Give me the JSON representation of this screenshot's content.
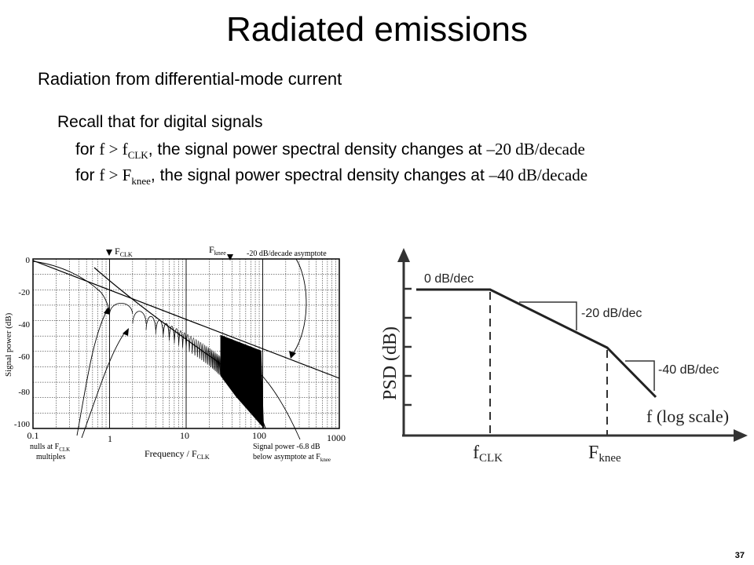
{
  "slide": {
    "title": "Radiated emissions",
    "subtitle": "Radiation from differential-mode current",
    "recall": "Recall that for digital signals",
    "bullet1": {
      "prefix": "for ",
      "f": "f > f",
      "sub": "CLK",
      "middle": ", the signal power spectral density changes at ",
      "rate": "–20 dB/decade"
    },
    "bullet2": {
      "prefix": "for ",
      "f": "f > F",
      "sub": "knee",
      "middle": ", the signal power spectral density changes at ",
      "rate": "–40 dB/decade"
    },
    "page_number": "37"
  },
  "left_plot": {
    "ylabel": "Signal power (dB)",
    "yticks": [
      "0",
      "-20",
      "-40",
      "-60",
      "-80",
      "-100"
    ],
    "xticks": [
      "0.1",
      "1",
      "10",
      "100",
      "1000"
    ],
    "xlabel_main": "Frequency / F",
    "xlabel_sub": "CLK",
    "fclk_marker": "F",
    "fclk_sub": "CLK",
    "fknee_marker": "F",
    "fknee_sub": "knee",
    "asymptote_note": "-20 dB/decade asymptote",
    "nulls_note_l1": "nulls at F",
    "nulls_note_sub": "CLK",
    "nulls_note_l2": "multiples",
    "power_note_l1": "Signal power -6.8 dB",
    "power_note_l2": "below asymptote at F",
    "power_note_sub": "knee"
  },
  "right_plot": {
    "ylabel": "PSD (dB)",
    "xlabel": "f (log scale)",
    "seg1_label": "0 dB/dec",
    "seg2_label": "-20 dB/dec",
    "seg3_label": "-40 dB/dec",
    "fclk_main": "f",
    "fclk_sub": "CLK",
    "fknee_main": "F",
    "fknee_sub": "knee"
  }
}
